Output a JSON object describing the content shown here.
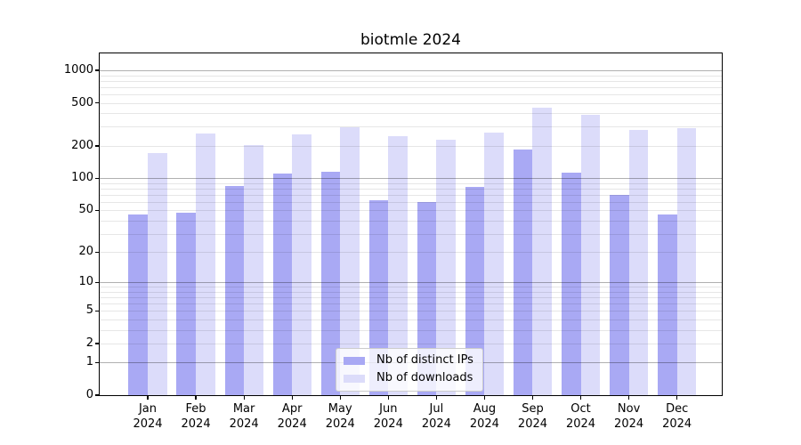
{
  "chart_data": {
    "type": "bar",
    "title": "biotmle 2024",
    "categories": [
      "Jan",
      "Feb",
      "Mar",
      "Apr",
      "May",
      "Jun",
      "Jul",
      "Aug",
      "Sep",
      "Oct",
      "Nov",
      "Dec"
    ],
    "xtick_second_line": "2024",
    "series": [
      {
        "name": "Nb of distinct IPs",
        "color": "#a9a9f4",
        "values": [
          46,
          47,
          84,
          110,
          115,
          62,
          60,
          83,
          183,
          113,
          70,
          46
        ]
      },
      {
        "name": "Nb of downloads",
        "color": "#dcdcfa",
        "values": [
          170,
          258,
          205,
          253,
          295,
          245,
          228,
          266,
          454,
          390,
          280,
          292
        ]
      }
    ],
    "xlabel": "",
    "ylabel": "",
    "yscale": "log1p",
    "yticks": [
      0,
      1,
      2,
      5,
      10,
      20,
      50,
      100,
      200,
      500,
      1000
    ],
    "ylim": [
      0,
      1430
    ],
    "grid": "horizontal",
    "grid_major_at": [
      1,
      10,
      100,
      1000
    ],
    "legend_position": "lower-center",
    "colors": {
      "background": "#ffffff",
      "grid_major": "#b0b0b0",
      "grid_minor": "#e6e6e6",
      "spine": "#000000",
      "text": "#000000",
      "legend_border": "#cccccc"
    }
  }
}
